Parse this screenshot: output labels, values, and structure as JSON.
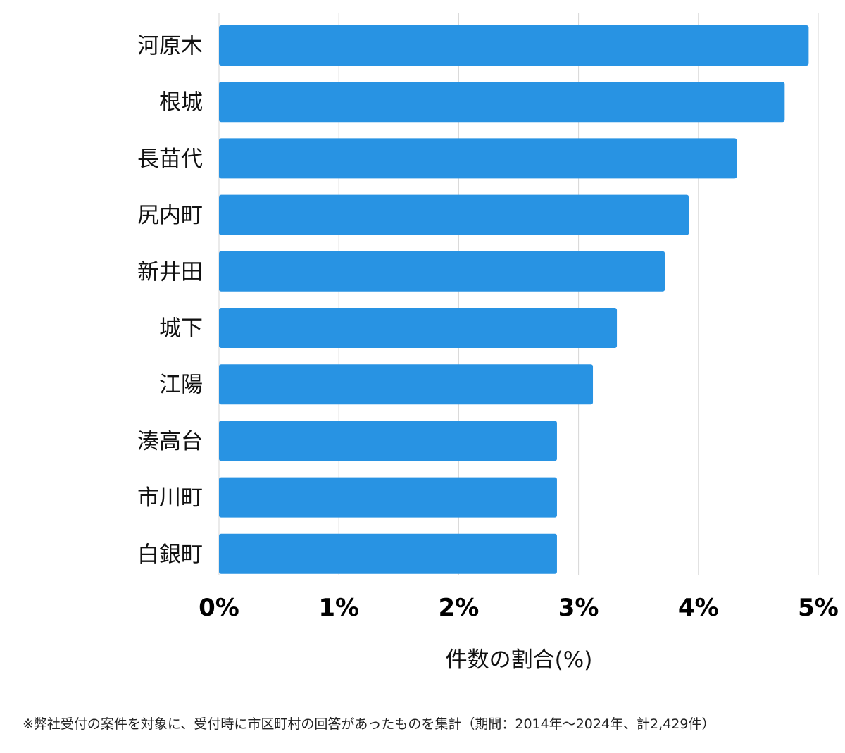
{
  "chart_data": {
    "type": "bar",
    "orientation": "horizontal",
    "categories": [
      "河原木",
      "根城",
      "長苗代",
      "尻内町",
      "新井田",
      "城下",
      "江陽",
      "湊高台",
      "市川町",
      "白銀町"
    ],
    "values": [
      4.92,
      4.72,
      4.32,
      3.92,
      3.72,
      3.32,
      3.12,
      2.82,
      2.82,
      2.82
    ],
    "xlabel": "件数の割合(%)",
    "ylabel": "",
    "xlim": [
      0,
      5
    ],
    "ticks": [
      0,
      1,
      2,
      3,
      4,
      5
    ],
    "tick_labels": [
      "0%",
      "1%",
      "2%",
      "3%",
      "4%",
      "5%"
    ],
    "grid": true,
    "bar_color": "#2893e3",
    "grid_color": "#d6d6d6"
  },
  "footnote": "※弊社受付の案件を対象に、受付時に市区町村の回答があったものを集計（期間：2014年～2024年、計2,429件）"
}
